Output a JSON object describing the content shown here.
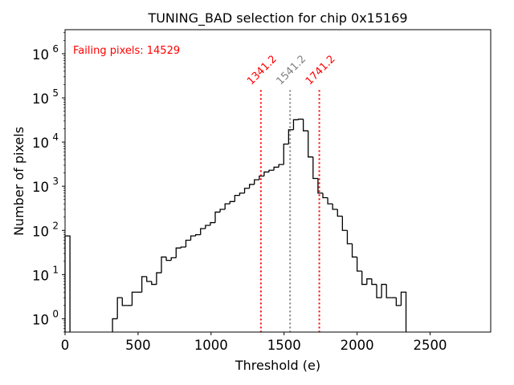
{
  "chart_data": {
    "type": "bar",
    "histogram": true,
    "title": "TUNING_BAD selection for chip 0x15169",
    "xlabel": "Threshold (e)",
    "ylabel": "Number of pixels",
    "xlim": [
      0,
      2915
    ],
    "ylim": [
      0.5,
      3500000
    ],
    "yscale": "log",
    "grid": false,
    "xticks": [
      0,
      500,
      1000,
      1500,
      2000,
      2500
    ],
    "xtick_labels": [
      "0",
      "500",
      "1000",
      "1500",
      "2000",
      "2500"
    ],
    "yticks": [
      1,
      10,
      100,
      1000,
      10000,
      100000,
      1000000
    ],
    "ytick_labels": [
      [
        "10",
        "0"
      ],
      [
        "10",
        "1"
      ],
      [
        "10",
        "2"
      ],
      [
        "10",
        "3"
      ],
      [
        "10",
        "4"
      ],
      [
        "10",
        "5"
      ],
      [
        "10",
        "6"
      ]
    ],
    "bin_width": 33.5,
    "bins": [
      {
        "start": 0,
        "value": 75
      },
      {
        "start": 325,
        "value": 1
      },
      {
        "start": 358.5,
        "value": 3
      },
      {
        "start": 392,
        "value": 2
      },
      {
        "start": 425.5,
        "value": 2
      },
      {
        "start": 459,
        "value": 4
      },
      {
        "start": 492.5,
        "value": 4
      },
      {
        "start": 526,
        "value": 9
      },
      {
        "start": 559.5,
        "value": 7
      },
      {
        "start": 593,
        "value": 6
      },
      {
        "start": 626.5,
        "value": 11
      },
      {
        "start": 660,
        "value": 25
      },
      {
        "start": 693.5,
        "value": 21
      },
      {
        "start": 727,
        "value": 24
      },
      {
        "start": 760.5,
        "value": 40
      },
      {
        "start": 794,
        "value": 42
      },
      {
        "start": 827.5,
        "value": 60
      },
      {
        "start": 861,
        "value": 75
      },
      {
        "start": 894.5,
        "value": 80
      },
      {
        "start": 928,
        "value": 110
      },
      {
        "start": 961.5,
        "value": 130
      },
      {
        "start": 995,
        "value": 150
      },
      {
        "start": 1028.5,
        "value": 260
      },
      {
        "start": 1062,
        "value": 300
      },
      {
        "start": 1095.5,
        "value": 400
      },
      {
        "start": 1129,
        "value": 450
      },
      {
        "start": 1162.5,
        "value": 620
      },
      {
        "start": 1196,
        "value": 700
      },
      {
        "start": 1229.5,
        "value": 900
      },
      {
        "start": 1263,
        "value": 1100
      },
      {
        "start": 1296.5,
        "value": 1400
      },
      {
        "start": 1330,
        "value": 1700
      },
      {
        "start": 1363.5,
        "value": 2100
      },
      {
        "start": 1397,
        "value": 2300
      },
      {
        "start": 1430.5,
        "value": 2700
      },
      {
        "start": 1464,
        "value": 3100
      },
      {
        "start": 1497.5,
        "value": 9000
      },
      {
        "start": 1531,
        "value": 19000
      },
      {
        "start": 1564.5,
        "value": 32000
      },
      {
        "start": 1598,
        "value": 33000
      },
      {
        "start": 1631.5,
        "value": 18000
      },
      {
        "start": 1665,
        "value": 4600
      },
      {
        "start": 1698.5,
        "value": 1500
      },
      {
        "start": 1732,
        "value": 700
      },
      {
        "start": 1765.5,
        "value": 550
      },
      {
        "start": 1799,
        "value": 400
      },
      {
        "start": 1832.5,
        "value": 300
      },
      {
        "start": 1866,
        "value": 210
      },
      {
        "start": 1899.5,
        "value": 100
      },
      {
        "start": 1933,
        "value": 50
      },
      {
        "start": 1966.5,
        "value": 25
      },
      {
        "start": 2000,
        "value": 12
      },
      {
        "start": 2033.5,
        "value": 6
      },
      {
        "start": 2067,
        "value": 8
      },
      {
        "start": 2100.5,
        "value": 6
      },
      {
        "start": 2134,
        "value": 3
      },
      {
        "start": 2167.5,
        "value": 6
      },
      {
        "start": 2201,
        "value": 3
      },
      {
        "start": 2234.5,
        "value": 3
      },
      {
        "start": 2268,
        "value": 2
      },
      {
        "start": 2301.5,
        "value": 4
      }
    ],
    "vlines": [
      {
        "x": 1341.2,
        "label": "1341.2",
        "color": "#ff0000"
      },
      {
        "x": 1541.2,
        "label": "1541.2",
        "color": "#808080"
      },
      {
        "x": 1741.2,
        "label": "1741.2",
        "color": "#ff0000"
      }
    ],
    "annotations": [
      {
        "text": "Failing pixels: 14529",
        "color": "#ff0000",
        "position": "top-left"
      }
    ]
  }
}
